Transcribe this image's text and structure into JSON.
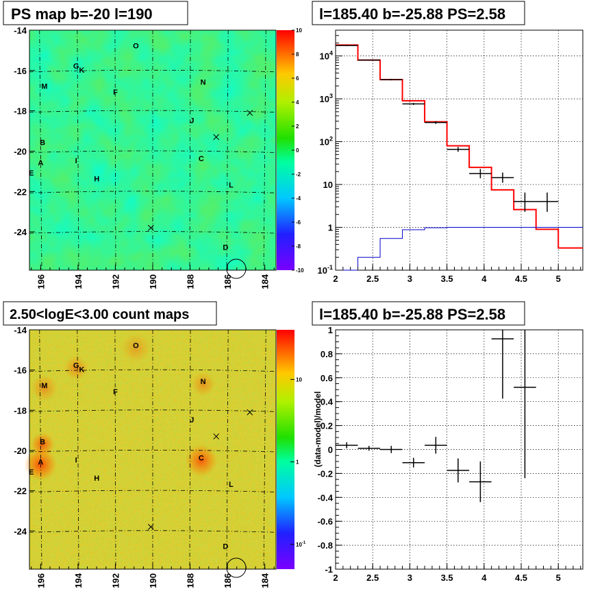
{
  "chart_data": [
    {
      "type": "heatmap",
      "title": "PS map b=-20 l=190",
      "x_ticks": [
        "196",
        "194",
        "192",
        "190",
        "188",
        "186",
        "184"
      ],
      "xlim": [
        196.6,
        183.4
      ],
      "y_ticks": [
        "-14",
        "-16",
        "-18",
        "-20",
        "-22",
        "-24"
      ],
      "ylim": [
        -25.9,
        -14.0
      ],
      "palette_ticks": [
        "10",
        "8",
        "6",
        "4",
        "2",
        "0",
        "-2",
        "-4",
        "-6",
        "-8",
        "-10"
      ],
      "palette_range": [
        -10,
        10
      ],
      "sources": [
        {
          "name": "O",
          "l": 190.9,
          "b": -14.9
        },
        {
          "name": "G",
          "l": 194.1,
          "b": -15.9
        },
        {
          "name": "K",
          "l": 193.8,
          "b": -16.1
        },
        {
          "name": "M",
          "l": 195.8,
          "b": -16.9
        },
        {
          "name": "N",
          "l": 187.3,
          "b": -16.7
        },
        {
          "name": "F",
          "l": 192.0,
          "b": -17.2
        },
        {
          "name": "J",
          "l": 187.9,
          "b": -18.6
        },
        {
          "name": "B",
          "l": 195.9,
          "b": -19.7
        },
        {
          "name": "A",
          "l": 196.0,
          "b": -20.7
        },
        {
          "name": "I",
          "l": 194.1,
          "b": -20.6
        },
        {
          "name": "C",
          "l": 187.4,
          "b": -20.5
        },
        {
          "name": "E",
          "l": 196.5,
          "b": -21.2
        },
        {
          "name": "H",
          "l": 193.0,
          "b": -21.5
        },
        {
          "name": "L",
          "l": 185.8,
          "b": -21.8
        },
        {
          "name": "D",
          "l": 186.1,
          "b": -24.9
        }
      ],
      "crosses": [
        {
          "l": 184.8,
          "b": -18.1
        },
        {
          "l": 186.6,
          "b": -19.3
        },
        {
          "l": 190.1,
          "b": -23.8
        }
      ]
    },
    {
      "type": "line",
      "title": "l=185.40 b=-25.88 PS=2.58",
      "x_ticks": [
        "2",
        "2.5",
        "3",
        "3.5",
        "4",
        "4.5",
        "5"
      ],
      "xlim": [
        2.0,
        5.33
      ],
      "y_scale": "log",
      "y_ticks": [
        "10^-1",
        "1",
        "10",
        "10^2",
        "10^3",
        "10^4"
      ],
      "ylim": [
        0.1,
        40000
      ],
      "series": [
        {
          "style": "step",
          "color": "#ff0000",
          "edges": [
            2.0,
            2.3,
            2.6,
            2.9,
            3.2,
            3.5,
            3.8,
            4.1,
            4.4,
            4.7,
            5.0,
            5.33
          ],
          "values": [
            18000,
            8000,
            2800,
            900,
            290,
            80,
            25,
            7.5,
            2.6,
            0.9,
            0.33
          ]
        },
        {
          "style": "step",
          "color": "#0000cc",
          "edges": [
            2.0,
            2.3,
            2.6,
            2.9,
            3.2,
            3.5,
            3.8,
            4.1,
            4.4,
            4.7,
            5.0,
            5.33
          ],
          "values": [
            0.1,
            0.2,
            0.55,
            0.88,
            0.98,
            1.0,
            1.0,
            1.0,
            1.0,
            1.0,
            1.0
          ]
        },
        {
          "style": "errorbar",
          "color": "#000000",
          "points": [
            {
              "x": 2.15,
              "y": 17500,
              "xerr": 0.15,
              "ylo": 17000,
              "yhi": 18000
            },
            {
              "x": 2.45,
              "y": 8000,
              "xerr": 0.15,
              "ylo": 7800,
              "yhi": 8200
            },
            {
              "x": 2.75,
              "y": 2800,
              "xerr": 0.15,
              "ylo": 2700,
              "yhi": 2900
            },
            {
              "x": 3.05,
              "y": 760,
              "xerr": 0.15,
              "ylo": 720,
              "yhi": 800
            },
            {
              "x": 3.35,
              "y": 280,
              "xerr": 0.15,
              "ylo": 260,
              "yhi": 300
            },
            {
              "x": 3.65,
              "y": 66,
              "xerr": 0.15,
              "ylo": 58,
              "yhi": 75
            },
            {
              "x": 3.95,
              "y": 18,
              "xerr": 0.15,
              "ylo": 14,
              "yhi": 23
            },
            {
              "x": 4.25,
              "y": 14.5,
              "xerr": 0.15,
              "ylo": 11,
              "yhi": 19
            },
            {
              "x": 4.55,
              "y": 4.0,
              "xerr": 0.15,
              "ylo": 2.3,
              "yhi": 6.5
            },
            {
              "x": 4.85,
              "y": 4.0,
              "xerr": 0.15,
              "ylo": 2.3,
              "yhi": 6.5
            }
          ]
        }
      ]
    },
    {
      "type": "heatmap",
      "title": "2.50<logE<3.00 count maps",
      "x_ticks": [
        "196",
        "194",
        "192",
        "190",
        "188",
        "186",
        "184"
      ],
      "xlim": [
        196.6,
        183.4
      ],
      "y_ticks": [
        "-14",
        "-16",
        "-18",
        "-20",
        "-22",
        "-24"
      ],
      "ylim": [
        -25.9,
        -14.0
      ],
      "palette_scale": "log",
      "palette_ticks": [
        "10",
        "1",
        "10^-1"
      ],
      "palette_range": [
        0.05,
        40
      ]
    },
    {
      "type": "scatter",
      "title": "l=185.40 b=-25.88 PS=2.58",
      "ylabel": "(data-model)/model",
      "x_ticks": [
        "2",
        "2.5",
        "3",
        "3.5",
        "4",
        "4.5",
        "5"
      ],
      "xlim": [
        2.0,
        5.33
      ],
      "y_ticks": [
        "1",
        "0.8",
        "0.6",
        "0.4",
        "0.2",
        "0",
        "-0.2",
        "-0.4",
        "-0.6",
        "-0.8",
        "-1"
      ],
      "ylim": [
        -1,
        1
      ],
      "points": [
        {
          "x": 2.15,
          "y": 0.035,
          "xerr": 0.15,
          "yerr": 0.025
        },
        {
          "x": 2.45,
          "y": 0.01,
          "xerr": 0.15,
          "yerr": 0.02
        },
        {
          "x": 2.75,
          "y": 0.0,
          "xerr": 0.15,
          "yerr": 0.03
        },
        {
          "x": 3.05,
          "y": -0.11,
          "xerr": 0.15,
          "yerr": 0.04
        },
        {
          "x": 3.35,
          "y": 0.035,
          "xerr": 0.15,
          "yerr": 0.07
        },
        {
          "x": 3.65,
          "y": -0.175,
          "xerr": 0.15,
          "yerr": 0.1
        },
        {
          "x": 3.95,
          "y": -0.27,
          "xerr": 0.15,
          "yerr": 0.17
        },
        {
          "x": 4.25,
          "y": 0.925,
          "xerr": 0.15,
          "yerr": 0.5
        },
        {
          "x": 4.55,
          "y": 0.52,
          "xerr": 0.15,
          "yerr": 0.76
        }
      ]
    }
  ]
}
